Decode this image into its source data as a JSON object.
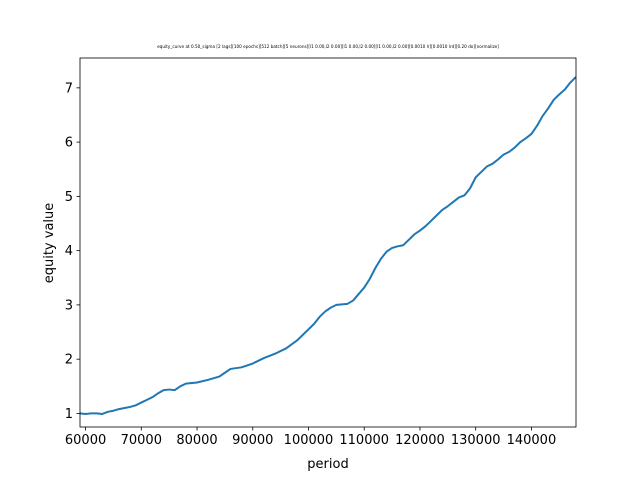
{
  "chart_data": {
    "type": "line",
    "title": "equity_curve at 0.50_sigma [2 lags][100 epochs][512 batch][5 neurons][l1 0.00,l2 0.00][l1 0.00,l2 0.00][l1 0.00,l2 0.00][0.0010 lr][0.0010 lrd][0.20 do][normalize]",
    "xlabel": "period",
    "ylabel": "equity value",
    "xlim": [
      59000,
      148000
    ],
    "ylim": [
      0.75,
      7.55
    ],
    "xticks": [
      60000,
      70000,
      80000,
      90000,
      100000,
      110000,
      120000,
      130000,
      140000
    ],
    "xtick_labels": [
      "60000",
      "70000",
      "80000",
      "90000",
      "100000",
      "110000",
      "120000",
      "130000",
      "140000"
    ],
    "yticks": [
      1,
      2,
      3,
      4,
      5,
      6,
      7
    ],
    "ytick_labels": [
      "1",
      "2",
      "3",
      "4",
      "5",
      "6",
      "7"
    ],
    "grid": false,
    "line_color": "#1f77b4",
    "series": [
      {
        "x": [
          59000,
          60000,
          61000,
          62000,
          63000,
          64000,
          65000,
          66000,
          67000,
          68000,
          69000,
          70000,
          71000,
          72000,
          73000,
          74000,
          75000,
          76000,
          77000,
          78000,
          80000,
          82000,
          84000,
          85000,
          86000,
          88000,
          90000,
          92000,
          94000,
          96000,
          98000,
          99000,
          100000,
          101000,
          102000,
          103000,
          104000,
          105000,
          107000,
          108000,
          109000,
          110000,
          111000,
          112000,
          113000,
          114000,
          115000,
          116000,
          117000,
          118000,
          119000,
          120000,
          121000,
          122000,
          123000,
          124000,
          125000,
          126000,
          127000,
          128000,
          129000,
          130000,
          131000,
          132000,
          133000,
          134000,
          135000,
          136000,
          137000,
          138000,
          139000,
          140000,
          141000,
          142000,
          143000,
          144000,
          145000,
          146000,
          147000,
          148000
        ],
        "y": [
          1.0,
          0.99,
          1.0,
          1.0,
          0.99,
          1.03,
          1.05,
          1.08,
          1.1,
          1.12,
          1.15,
          1.2,
          1.25,
          1.3,
          1.37,
          1.43,
          1.44,
          1.43,
          1.5,
          1.55,
          1.57,
          1.62,
          1.68,
          1.75,
          1.82,
          1.85,
          1.92,
          2.02,
          2.1,
          2.2,
          2.35,
          2.45,
          2.55,
          2.65,
          2.78,
          2.88,
          2.95,
          3.0,
          3.02,
          3.08,
          3.2,
          3.32,
          3.48,
          3.68,
          3.85,
          3.98,
          4.05,
          4.08,
          4.1,
          4.2,
          4.3,
          4.37,
          4.45,
          4.55,
          4.65,
          4.75,
          4.82,
          4.9,
          4.98,
          5.02,
          5.15,
          5.35,
          5.45,
          5.55,
          5.6,
          5.68,
          5.77,
          5.82,
          5.9,
          6.0,
          6.07,
          6.15,
          6.3,
          6.48,
          6.62,
          6.78,
          6.88,
          6.97,
          7.1,
          7.2
        ]
      }
    ]
  }
}
